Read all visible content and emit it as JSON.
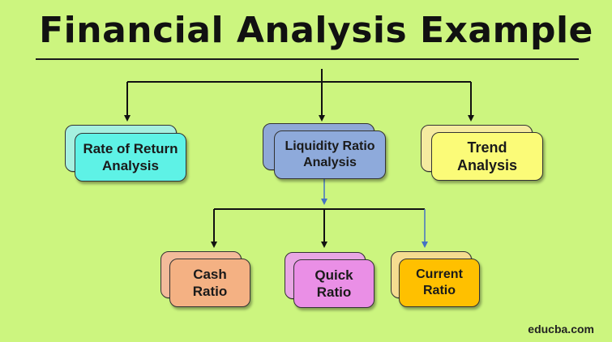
{
  "title": "Financial Analysis Example",
  "watermark": "educba.com",
  "nodes": {
    "rate_of_return": {
      "line1": "Rate of Return",
      "line2": "Analysis"
    },
    "liquidity_ratio": {
      "line1": "Liquidity Ratio",
      "line2": "Analysis"
    },
    "trend": {
      "line1": "Trend",
      "line2": "Analysis"
    },
    "cash_ratio": {
      "line1": "Cash",
      "line2": "Ratio"
    },
    "quick_ratio": {
      "line1": "Quick",
      "line2": "Ratio"
    },
    "current_ratio": {
      "line1": "Current",
      "line2": "Ratio"
    }
  },
  "colors": {
    "background": "#ccf57f",
    "rate_of_return": "#5ef2e6",
    "liquidity_ratio": "#8eaadb",
    "trend": "#fbfb78",
    "cash_ratio": "#f4b183",
    "quick_ratio": "#ea8fe6",
    "current_ratio": "#ffc000",
    "blue_arrow": "#4472c4"
  }
}
